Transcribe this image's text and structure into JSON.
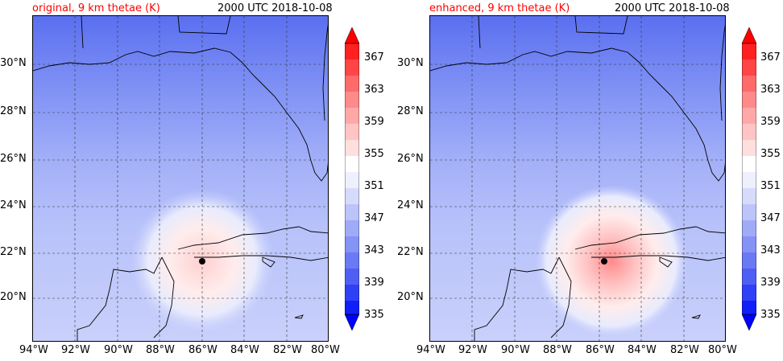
{
  "panels": [
    {
      "title_left": "original, 9 km thetae (K)",
      "title_right": "2000 UTC 2018-10-08"
    },
    {
      "title_left": "enhanced, 9 km thetae (K)",
      "title_right": "2000 UTC 2018-10-08"
    }
  ],
  "lat_ticks": [
    "30°N",
    "28°N",
    "26°N",
    "24°N",
    "22°N",
    "20°N"
  ],
  "lon_ticks": [
    "94°W",
    "92°W",
    "90°W",
    "88°W",
    "86°W",
    "84°W",
    "82°W",
    "80°W"
  ],
  "colorbar_ticks": [
    "367",
    "363",
    "359",
    "355",
    "351",
    "347",
    "343",
    "339",
    "335"
  ],
  "colors": {
    "title_accent": "#ff0000",
    "cold": "#0000ff",
    "neutral": "#ffffff",
    "warm": "#ff0000"
  },
  "marker": {
    "lon": -86,
    "lat": 21.6
  }
}
